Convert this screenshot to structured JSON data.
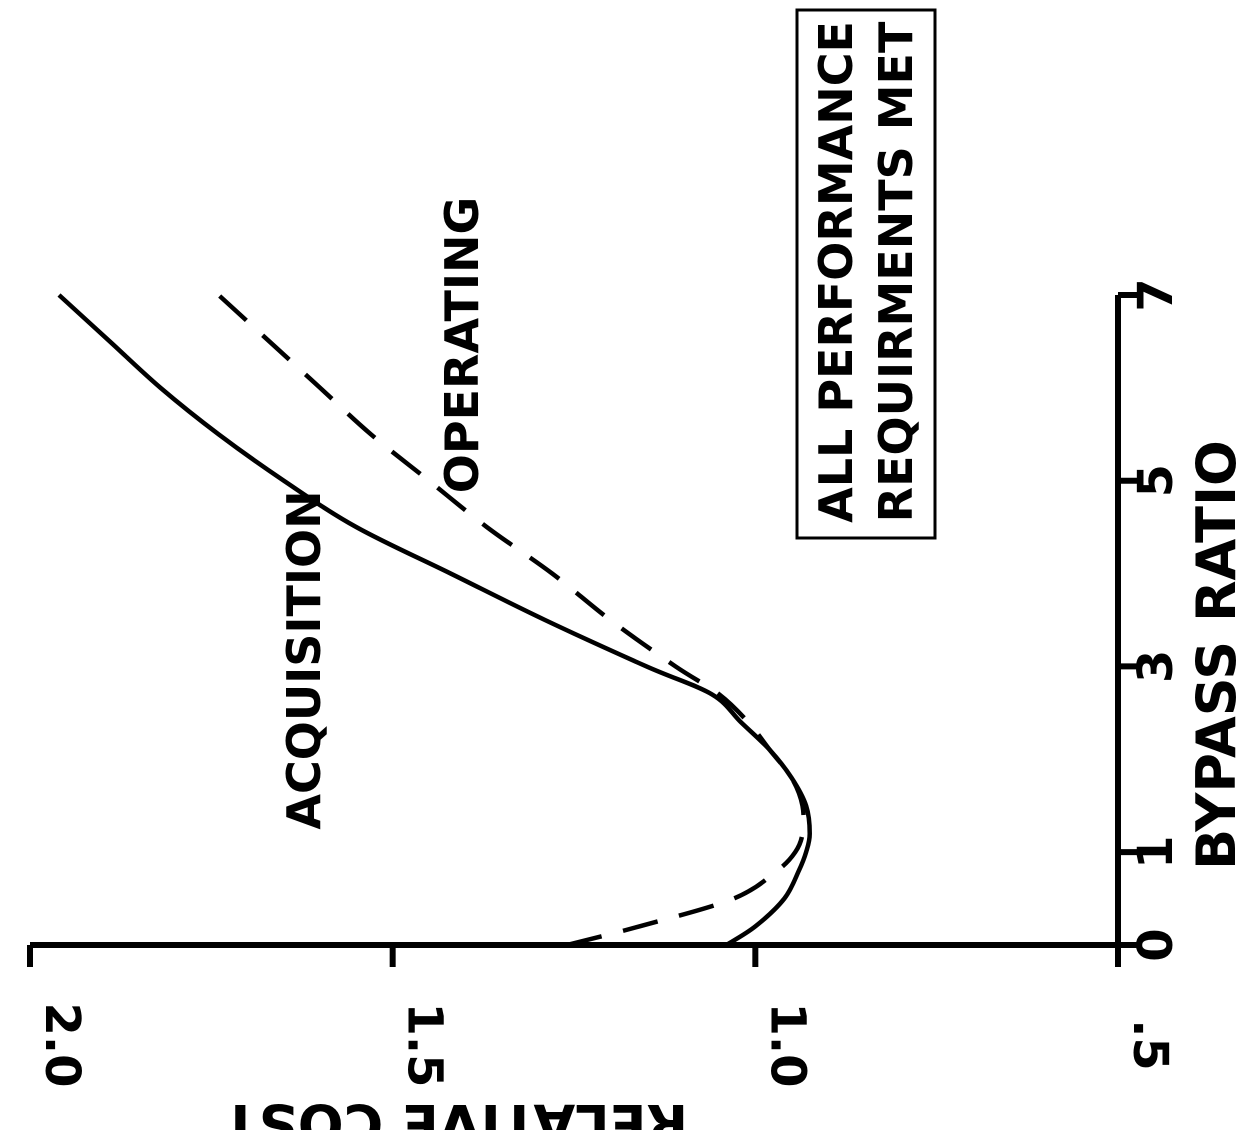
{
  "chart_data": {
    "type": "line",
    "xlabel": "BYPASS RATIO",
    "ylabel": "RELATIVE COST",
    "xlim": [
      0,
      7
    ],
    "ylim": [
      0.5,
      2.0
    ],
    "x_ticks": [
      0,
      1,
      3,
      5,
      7
    ],
    "x_tick_labels": [
      "0",
      "1",
      "3",
      "5",
      "7"
    ],
    "y_ticks": [
      0.5,
      1.0,
      1.5,
      2.0
    ],
    "y_tick_labels": [
      ".5",
      "1.0",
      "1.5",
      "2.0"
    ],
    "grid": false,
    "series": [
      {
        "name": "ACQUISITION",
        "style": "solid",
        "x": [
          0,
          0.2,
          0.5,
          0.8,
          1.0,
          1.2,
          1.5,
          1.8,
          2.1,
          2.4,
          2.7,
          3.0,
          3.5,
          4.0,
          4.5,
          5.0,
          5.5,
          6.0,
          6.5,
          7.0
        ],
        "y": [
          1.04,
          1.0,
          0.96,
          0.94,
          0.93,
          0.925,
          0.93,
          0.95,
          0.98,
          1.02,
          1.06,
          1.15,
          1.29,
          1.42,
          1.55,
          1.65,
          1.74,
          1.82,
          1.89,
          1.96
        ]
      },
      {
        "name": "OPERATING",
        "style": "dashed",
        "x": [
          0,
          0.2,
          0.5,
          0.8,
          1.0,
          1.2,
          1.5,
          1.8,
          2.1,
          2.4,
          2.7,
          3.0,
          3.5,
          4.0,
          4.5,
          5.0,
          5.5,
          6.0,
          6.5,
          7.0
        ],
        "y": [
          1.26,
          1.16,
          1.03,
          0.97,
          0.945,
          0.935,
          0.935,
          0.95,
          0.98,
          1.01,
          1.05,
          1.11,
          1.2,
          1.28,
          1.37,
          1.45,
          1.53,
          1.6,
          1.67,
          1.74
        ]
      }
    ],
    "annotation": {
      "line1": "ALL PERFORMANCE",
      "line2": "REQUIRMENTS MET"
    },
    "orientation": "rotated-90-counterclockwise"
  }
}
